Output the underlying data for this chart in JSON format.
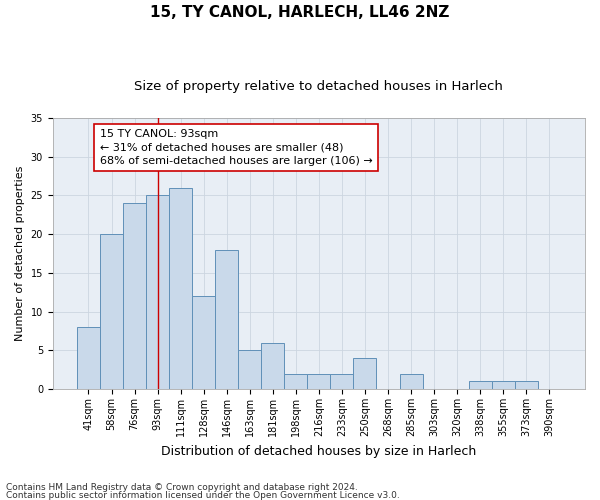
{
  "title1": "15, TY CANOL, HARLECH, LL46 2NZ",
  "title2": "Size of property relative to detached houses in Harlech",
  "xlabel": "Distribution of detached houses by size in Harlech",
  "ylabel": "Number of detached properties",
  "footer1": "Contains HM Land Registry data © Crown copyright and database right 2024.",
  "footer2": "Contains public sector information licensed under the Open Government Licence v3.0.",
  "bin_labels": [
    "41sqm",
    "58sqm",
    "76sqm",
    "93sqm",
    "111sqm",
    "128sqm",
    "146sqm",
    "163sqm",
    "181sqm",
    "198sqm",
    "216sqm",
    "233sqm",
    "250sqm",
    "268sqm",
    "285sqm",
    "303sqm",
    "320sqm",
    "338sqm",
    "355sqm",
    "373sqm",
    "390sqm"
  ],
  "values": [
    8,
    20,
    24,
    25,
    26,
    12,
    18,
    5,
    6,
    2,
    2,
    2,
    4,
    0,
    2,
    0,
    0,
    1,
    1,
    1,
    0
  ],
  "bar_color": "#c9d9ea",
  "bar_edgecolor": "#6090b8",
  "bar_linewidth": 0.7,
  "vline_x_index": 3,
  "vline_color": "#cc0000",
  "annotation_text": "15 TY CANOL: 93sqm\n← 31% of detached houses are smaller (48)\n68% of semi-detached houses are larger (106) →",
  "annotation_box_facecolor": "#ffffff",
  "annotation_box_edgecolor": "#cc0000",
  "ylim": [
    0,
    35
  ],
  "yticks": [
    0,
    5,
    10,
    15,
    20,
    25,
    30,
    35
  ],
  "grid_color": "#ccd5e0",
  "plot_background": "#e8eef5",
  "title1_fontsize": 11,
  "title2_fontsize": 9.5,
  "xlabel_fontsize": 9,
  "ylabel_fontsize": 8,
  "tick_fontsize": 7,
  "annotation_fontsize": 8,
  "footer_fontsize": 6.5
}
